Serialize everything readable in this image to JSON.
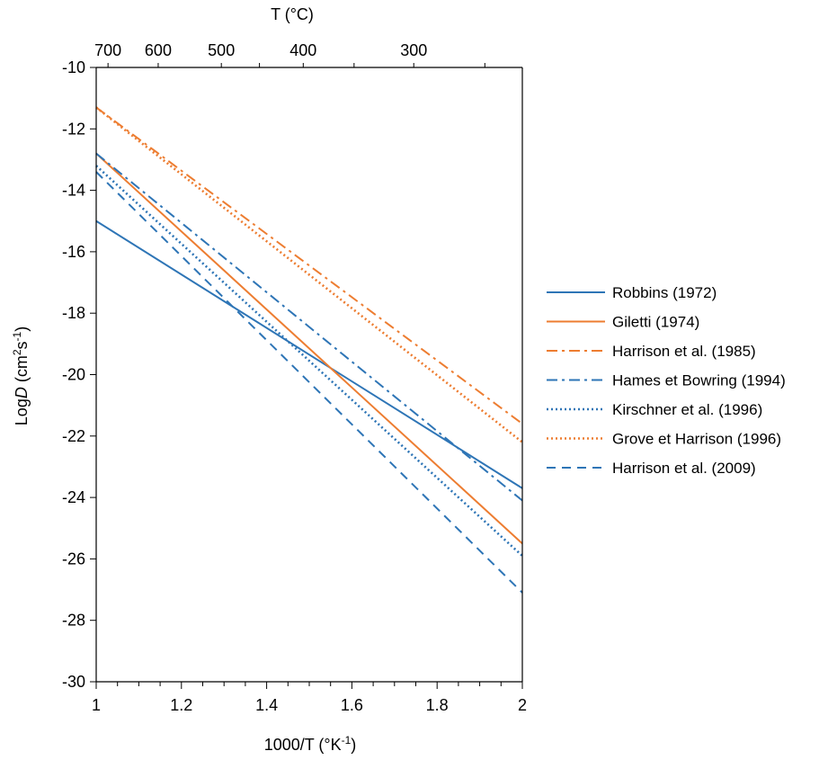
{
  "chart_data": {
    "type": "line",
    "xlabel": {
      "main": "1000/T (°K",
      "sup": "-1",
      "tail": ")"
    },
    "ylabel": {
      "prefix": "Log",
      "italic": "D",
      "mid": " (cm",
      "sup1": "2",
      "mid2": "s",
      "sup2": "-1",
      "tail": ")"
    },
    "top_xlabel": "T (°C)",
    "xlim": [
      1,
      2
    ],
    "ylim": [
      -30,
      -10
    ],
    "xticks": [
      "1",
      "1.2",
      "1.4",
      "1.6",
      "1.8",
      "2"
    ],
    "yticks": [
      "-10",
      "-12",
      "-14",
      "-16",
      "-18",
      "-20",
      "-22",
      "-24",
      "-26",
      "-28",
      "-30"
    ],
    "top_ticks": [
      "700",
      "600",
      "500",
      "400",
      "300"
    ],
    "legend_position": "right",
    "series": [
      {
        "name": "Robbins (1972)",
        "color": "#2E75B6",
        "dash": "solid",
        "x": [
          1,
          2
        ],
        "y": [
          -15.0,
          -23.7
        ]
      },
      {
        "name": "Giletti (1974)",
        "color": "#ED7D31",
        "dash": "solid",
        "x": [
          1,
          2
        ],
        "y": [
          -12.8,
          -25.5
        ]
      },
      {
        "name": "Harrison et al. (1985)",
        "color": "#ED7D31",
        "dash": "dashdot",
        "x": [
          1,
          2
        ],
        "y": [
          -11.3,
          -21.6
        ]
      },
      {
        "name": "Hames et Bowring (1994)",
        "color": "#2E75B6",
        "dash": "dashdot",
        "x": [
          1,
          2
        ],
        "y": [
          -12.8,
          -24.1
        ]
      },
      {
        "name": "Kirschner et al. (1996)",
        "color": "#2E75B6",
        "dash": "dotted",
        "x": [
          1,
          2
        ],
        "y": [
          -13.2,
          -25.9
        ]
      },
      {
        "name": "Grove et Harrison (1996)",
        "color": "#ED7D31",
        "dash": "dotted",
        "x": [
          1,
          2
        ],
        "y": [
          -11.3,
          -22.2
        ]
      },
      {
        "name": "Harrison et al. (2009)",
        "color": "#2E75B6",
        "dash": "dashed",
        "x": [
          1,
          2
        ],
        "y": [
          -13.4,
          -27.1
        ]
      }
    ]
  }
}
